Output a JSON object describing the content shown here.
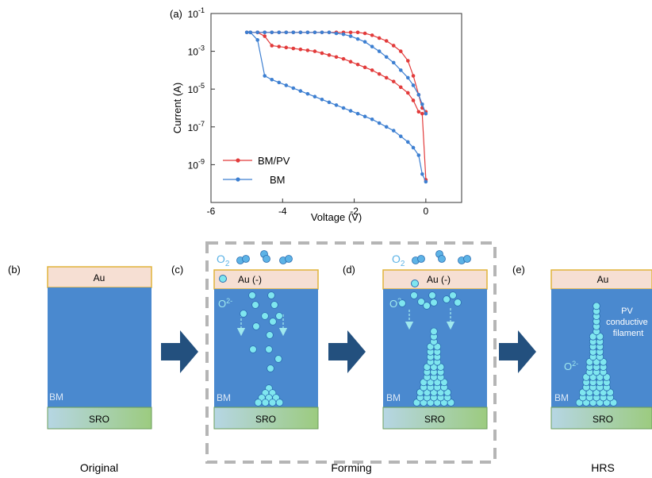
{
  "chart_data": {
    "type": "line",
    "panel_label": "(a)",
    "xlabel": "Voltage (V)",
    "ylabel": "Current (A)",
    "xlim": [
      -6,
      1
    ],
    "ylim_log10": [
      -11,
      -1
    ],
    "y_scale": "log",
    "x_ticks": [
      -6,
      -4,
      -2,
      0
    ],
    "y_ticks": [
      {
        "base": "10",
        "exp": "-1",
        "value": -1
      },
      {
        "base": "10",
        "exp": "-3",
        "value": -3
      },
      {
        "base": "10",
        "exp": "-5",
        "value": -5
      },
      {
        "base": "10",
        "exp": "-7",
        "value": -7
      },
      {
        "base": "10",
        "exp": "-9",
        "value": -9
      }
    ],
    "legend_position": "bottom-left",
    "series": [
      {
        "name": "BM/PV",
        "color": "#e23b3b",
        "x": [
          0,
          -0.1,
          -0.2,
          -0.35,
          -0.5,
          -0.7,
          -0.9,
          -1.1,
          -1.3,
          -1.5,
          -1.7,
          -1.9,
          -2.1,
          -2.3,
          -2.5,
          -2.7,
          -2.9,
          -3.1,
          -3.3,
          -3.5,
          -3.7,
          -3.9,
          -4.1,
          -4.3,
          -4.5,
          -4.7,
          -4.9,
          -5.0,
          -4.9,
          -4.7,
          -4.5,
          -4.3,
          -4.1,
          -3.9,
          -3.7,
          -3.5,
          -3.3,
          -3.1,
          -2.9,
          -2.7,
          -2.5,
          -2.3,
          -2.1,
          -1.9,
          -1.7,
          -1.5,
          -1.3,
          -1.1,
          -0.9,
          -0.7,
          -0.5,
          -0.35,
          -0.2,
          -0.1,
          0
        ],
        "log10_y": [
          -9.8,
          -6.3,
          -6.2,
          -5.6,
          -5.2,
          -4.9,
          -4.6,
          -4.4,
          -4.2,
          -4.0,
          -3.85,
          -3.7,
          -3.55,
          -3.4,
          -3.3,
          -3.2,
          -3.1,
          -3.0,
          -2.95,
          -2.9,
          -2.85,
          -2.8,
          -2.75,
          -2.7,
          -2.2,
          -2.0,
          -2.0,
          -2.0,
          -2.0,
          -2.0,
          -2.0,
          -2.0,
          -2.0,
          -2.0,
          -2.0,
          -2.0,
          -2.0,
          -2.0,
          -2.0,
          -2.0,
          -2.0,
          -2.0,
          -2.0,
          -2.0,
          -2.05,
          -2.15,
          -2.3,
          -2.45,
          -2.7,
          -3.0,
          -3.5,
          -4.3,
          -5.3,
          -6.0,
          -6.2
        ]
      },
      {
        "name": "BM",
        "color": "#3d7fd1",
        "x": [
          0,
          -0.1,
          -0.2,
          -0.35,
          -0.5,
          -0.7,
          -0.9,
          -1.1,
          -1.3,
          -1.5,
          -1.7,
          -1.9,
          -2.1,
          -2.3,
          -2.5,
          -2.7,
          -2.9,
          -3.1,
          -3.3,
          -3.5,
          -3.7,
          -3.9,
          -4.1,
          -4.3,
          -4.5,
          -4.7,
          -4.9,
          -5.0,
          -4.9,
          -4.7,
          -4.5,
          -4.3,
          -4.1,
          -3.9,
          -3.7,
          -3.5,
          -3.3,
          -3.1,
          -2.9,
          -2.7,
          -2.5,
          -2.3,
          -2.1,
          -1.9,
          -1.7,
          -1.5,
          -1.3,
          -1.1,
          -0.9,
          -0.7,
          -0.5,
          -0.35,
          -0.2,
          -0.1,
          0
        ],
        "log10_y": [
          -9.9,
          -9.5,
          -8.5,
          -8.1,
          -7.8,
          -7.5,
          -7.2,
          -7.0,
          -6.8,
          -6.6,
          -6.45,
          -6.3,
          -6.15,
          -6.0,
          -5.85,
          -5.7,
          -5.55,
          -5.4,
          -5.25,
          -5.1,
          -4.95,
          -4.8,
          -4.65,
          -4.5,
          -4.3,
          -2.4,
          -2.0,
          -2.0,
          -2.0,
          -2.0,
          -2.0,
          -2.0,
          -2.0,
          -2.0,
          -2.0,
          -2.0,
          -2.0,
          -2.0,
          -2.0,
          -2.0,
          -2.05,
          -2.1,
          -2.2,
          -2.35,
          -2.5,
          -2.75,
          -3.0,
          -3.3,
          -3.6,
          -4.0,
          -4.4,
          -4.8,
          -5.3,
          -5.8,
          -6.3
        ]
      }
    ]
  },
  "diagram": {
    "panels": [
      {
        "label": "(b)",
        "top": "Au",
        "bulk": "BM",
        "bottom": "SRO"
      },
      {
        "label": "(c)",
        "top": "Au (-)",
        "bulk": "BM",
        "bottom": "SRO",
        "gas": "O2",
        "ion": "O2-"
      },
      {
        "label": "(d)",
        "top": "Au (-)",
        "bulk": "BM",
        "bottom": "SRO",
        "gas": "O2",
        "ion": "O2-"
      },
      {
        "label": "(e)",
        "top": "Au",
        "bulk": "BM",
        "bottom": "SRO",
        "ion": "O2-",
        "filament_label": [
          "PV",
          "conductive",
          "filament"
        ]
      }
    ],
    "captions": [
      "Original",
      "Forming",
      "HRS"
    ],
    "colors": {
      "au": "#f6dfd3",
      "au_border": "#e0b33a",
      "bm": "#4a89cf",
      "sro_top": "#b6d6e4",
      "sro_bottom": "#9ccb7f",
      "ion": "#7fe6ef",
      "arrow": "#23507e",
      "dashed_box": "#b5b5b5"
    }
  }
}
